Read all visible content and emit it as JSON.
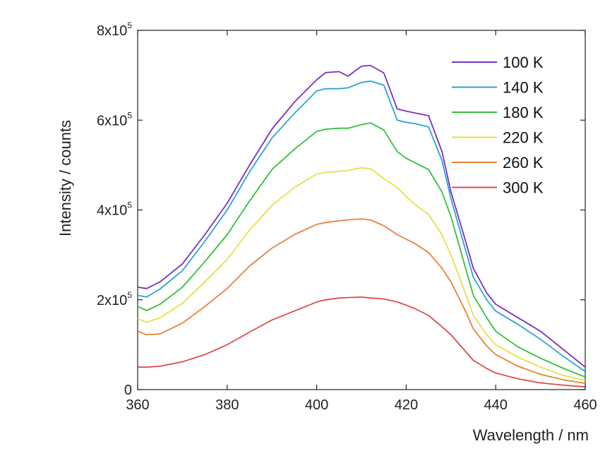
{
  "chart_data": {
    "type": "line",
    "title": "",
    "xlabel": "Wavelength / nm",
    "ylabel": "Intensity / counts",
    "xlim": [
      360,
      460
    ],
    "ylim": [
      0,
      800000
    ],
    "x_ticks": [
      {
        "value": 360,
        "label": "360"
      },
      {
        "value": 380,
        "label": "380"
      },
      {
        "value": 400,
        "label": "400"
      },
      {
        "value": 420,
        "label": "420"
      },
      {
        "value": 440,
        "label": "440"
      },
      {
        "value": 460,
        "label": "460"
      }
    ],
    "y_ticks": [
      {
        "value": 0,
        "base": "0",
        "exp": ""
      },
      {
        "value": 200000,
        "base": "2x10",
        "exp": "5"
      },
      {
        "value": 400000,
        "base": "4x10",
        "exp": "5"
      },
      {
        "value": 600000,
        "base": "6x10",
        "exp": "5"
      },
      {
        "value": 800000,
        "base": "8x10",
        "exp": "5"
      }
    ],
    "legend_position": "top-right",
    "grid": false,
    "x": [
      360,
      362,
      365,
      370,
      375,
      380,
      385,
      390,
      395,
      400,
      402,
      405,
      407,
      410,
      412,
      415,
      418,
      420,
      422,
      425,
      428,
      430,
      433,
      435,
      438,
      440,
      445,
      450,
      455,
      460
    ],
    "series": [
      {
        "name": "100 K",
        "color": "#7b2fbe",
        "values": [
          228000,
          225000,
          240000,
          280000,
          345000,
          415000,
          500000,
          580000,
          640000,
          690000,
          706000,
          708000,
          698000,
          720000,
          722000,
          705000,
          625000,
          620000,
          616000,
          610000,
          530000,
          440000,
          340000,
          270000,
          215000,
          190000,
          160000,
          130000,
          90000,
          50000
        ]
      },
      {
        "name": "140 K",
        "color": "#2aa3d9",
        "values": [
          210000,
          206000,
          224000,
          265000,
          330000,
          400000,
          485000,
          560000,
          615000,
          665000,
          670000,
          670000,
          672000,
          684000,
          687000,
          678000,
          600000,
          595000,
          592000,
          585000,
          510000,
          425000,
          320000,
          250000,
          200000,
          175000,
          145000,
          112000,
          75000,
          40000
        ]
      },
      {
        "name": "180 K",
        "color": "#34c03a",
        "values": [
          185000,
          176000,
          190000,
          228000,
          285000,
          345000,
          420000,
          490000,
          535000,
          575000,
          580000,
          582000,
          582000,
          590000,
          594000,
          578000,
          530000,
          515000,
          505000,
          490000,
          440000,
          385000,
          280000,
          210000,
          160000,
          130000,
          95000,
          70000,
          48000,
          28000
        ]
      },
      {
        "name": "220 K",
        "color": "#e6e04a",
        "values": [
          158000,
          150000,
          160000,
          192000,
          240000,
          290000,
          355000,
          410000,
          450000,
          480000,
          484000,
          486000,
          488000,
          494000,
          492000,
          470000,
          450000,
          430000,
          412000,
          390000,
          345000,
          300000,
          220000,
          165000,
          122000,
          100000,
          72000,
          50000,
          32000,
          20000
        ]
      },
      {
        "name": "260 K",
        "color": "#e8823a",
        "values": [
          130000,
          122000,
          124000,
          148000,
          185000,
          225000,
          275000,
          315000,
          345000,
          368000,
          372000,
          376000,
          378000,
          380000,
          378000,
          365000,
          345000,
          335000,
          325000,
          305000,
          270000,
          240000,
          180000,
          135000,
          97000,
          78000,
          52000,
          34000,
          22000,
          14000
        ]
      },
      {
        "name": "300 K",
        "color": "#e04a4a",
        "values": [
          50000,
          50000,
          52000,
          62000,
          78000,
          100000,
          128000,
          155000,
          175000,
          195000,
          200000,
          204000,
          205000,
          206000,
          204000,
          202000,
          195000,
          188000,
          180000,
          165000,
          140000,
          122000,
          88000,
          65000,
          47000,
          37000,
          24000,
          15000,
          10000,
          6000
        ]
      }
    ]
  }
}
